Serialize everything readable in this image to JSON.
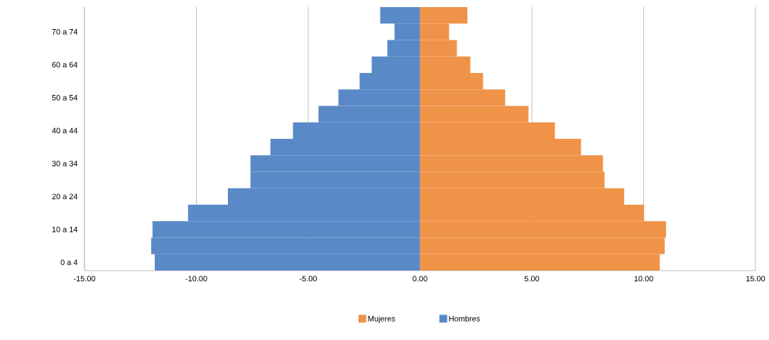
{
  "chart_data": {
    "type": "bar",
    "orientation": "horizontal",
    "stacked": true,
    "categories": [
      null,
      "70 a 74",
      null,
      "60 a 64",
      null,
      "50 a 54",
      null,
      "40 a 44",
      null,
      "30 a 34",
      null,
      "20 a 24",
      null,
      "10 a 14",
      null,
      "0 a 4"
    ],
    "series": [
      {
        "name": "Mujeres",
        "color": "#ef9349",
        "values": [
          2.12,
          1.3,
          1.65,
          2.25,
          2.82,
          3.81,
          4.85,
          6.03,
          7.2,
          8.18,
          8.25,
          9.13,
          10.02,
          11.0,
          10.94,
          10.72
        ]
      },
      {
        "name": "Hombres",
        "color": "#5a89c7",
        "values": [
          -1.78,
          -1.14,
          -1.46,
          -2.16,
          -2.7,
          -3.65,
          -4.54,
          -5.68,
          -6.69,
          -7.58,
          -7.58,
          -8.59,
          -10.37,
          -11.96,
          -12.02,
          -11.86
        ]
      }
    ],
    "xlim": [
      -15,
      15
    ],
    "xticks": [
      {
        "value": -15,
        "label": "-15.00"
      },
      {
        "value": -10,
        "label": "-10.00"
      },
      {
        "value": -5,
        "label": "-5.00"
      },
      {
        "value": 0,
        "label": "0.00"
      },
      {
        "value": 5,
        "label": "5.00"
      },
      {
        "value": 10,
        "label": "10.00"
      },
      {
        "value": 15,
        "label": "15.00"
      }
    ],
    "grid": "x",
    "legend": "bottom"
  }
}
